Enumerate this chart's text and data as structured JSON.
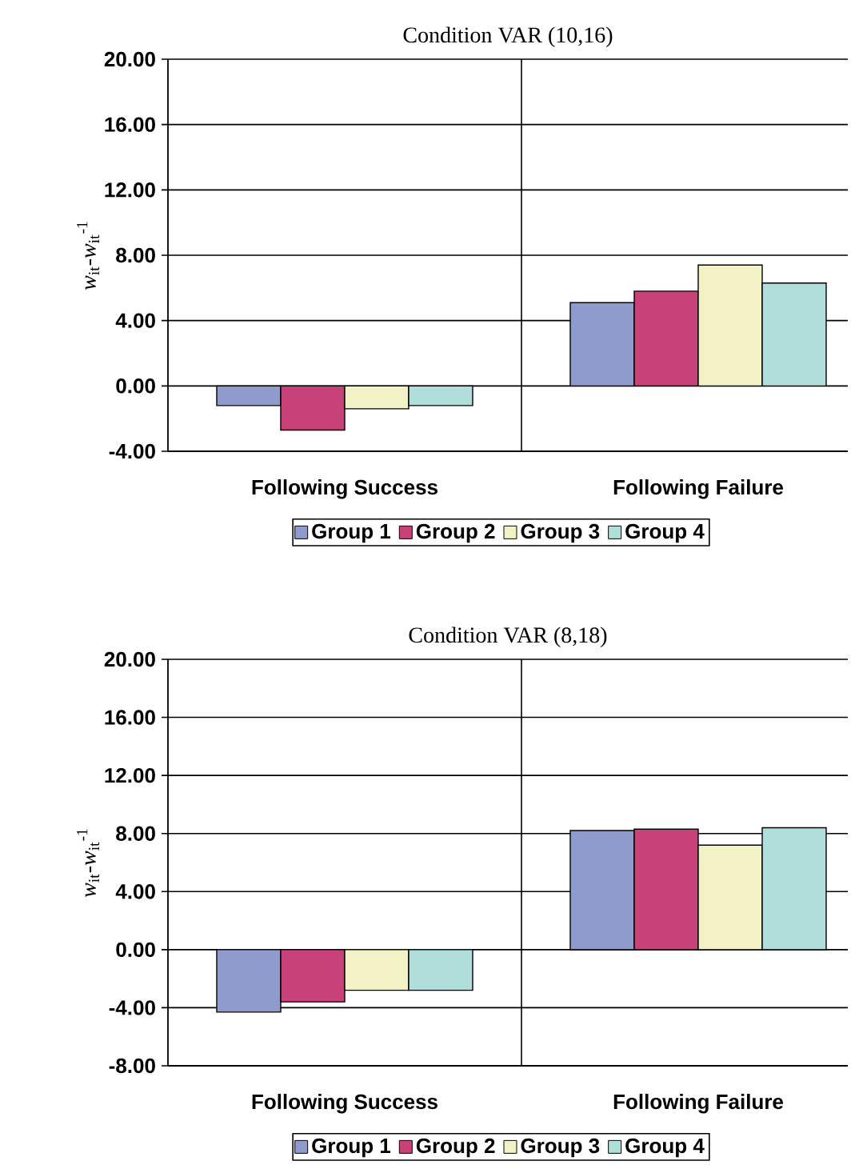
{
  "chart_data": [
    {
      "type": "bar",
      "title": "Condition VAR (10,16)",
      "ylabel": "*w*$_{it}$-*w*$_{it}$$^{-1}$",
      "categories": [
        "Following Success",
        "Following Failure"
      ],
      "series": [
        {
          "name": "Group 1",
          "color": "#8e9bcc",
          "values": [
            -1.2,
            5.1
          ]
        },
        {
          "name": "Group 2",
          "color": "#c84178",
          "values": [
            -2.7,
            5.8
          ]
        },
        {
          "name": "Group 3",
          "color": "#f2f2c6",
          "values": [
            -1.4,
            7.4
          ]
        },
        {
          "name": "Group 4",
          "color": "#b0dfdb",
          "values": [
            -1.2,
            6.3
          ]
        }
      ],
      "ylim": [
        -4,
        20
      ],
      "yticks": [
        {
          "value": -4,
          "label": "-4.00"
        },
        {
          "value": 0,
          "label": "0.00"
        },
        {
          "value": 4,
          "label": "4.00"
        },
        {
          "value": 8,
          "label": "8.00"
        },
        {
          "value": 12,
          "label": "12.00"
        },
        {
          "value": 16,
          "label": "16.00"
        },
        {
          "value": 20,
          "label": "20.00"
        }
      ],
      "grid": true,
      "legend": "bottom"
    },
    {
      "type": "bar",
      "title": "Condition VAR (8,18)",
      "ylabel": "*w*$_{it}$-*w*$_{it}$$^{-1}$",
      "categories": [
        "Following Success",
        "Following Failure"
      ],
      "series": [
        {
          "name": "Group 1",
          "color": "#8e9bcc",
          "values": [
            -4.3,
            8.2
          ]
        },
        {
          "name": "Group 2",
          "color": "#c84178",
          "values": [
            -3.6,
            8.3
          ]
        },
        {
          "name": "Group 3",
          "color": "#f2f2c6",
          "values": [
            -2.8,
            7.2
          ]
        },
        {
          "name": "Group 4",
          "color": "#b0dfdb",
          "values": [
            -2.8,
            8.4
          ]
        }
      ],
      "ylim": [
        -8,
        20
      ],
      "yticks": [
        {
          "value": -8,
          "label": "-8.00"
        },
        {
          "value": -4,
          "label": "-4.00"
        },
        {
          "value": 0,
          "label": "0.00"
        },
        {
          "value": 4,
          "label": "4.00"
        },
        {
          "value": 8,
          "label": "8.00"
        },
        {
          "value": 12,
          "label": "12.00"
        },
        {
          "value": 16,
          "label": "16.00"
        },
        {
          "value": 20,
          "label": "20.00"
        }
      ],
      "grid": true,
      "legend": "bottom"
    }
  ]
}
